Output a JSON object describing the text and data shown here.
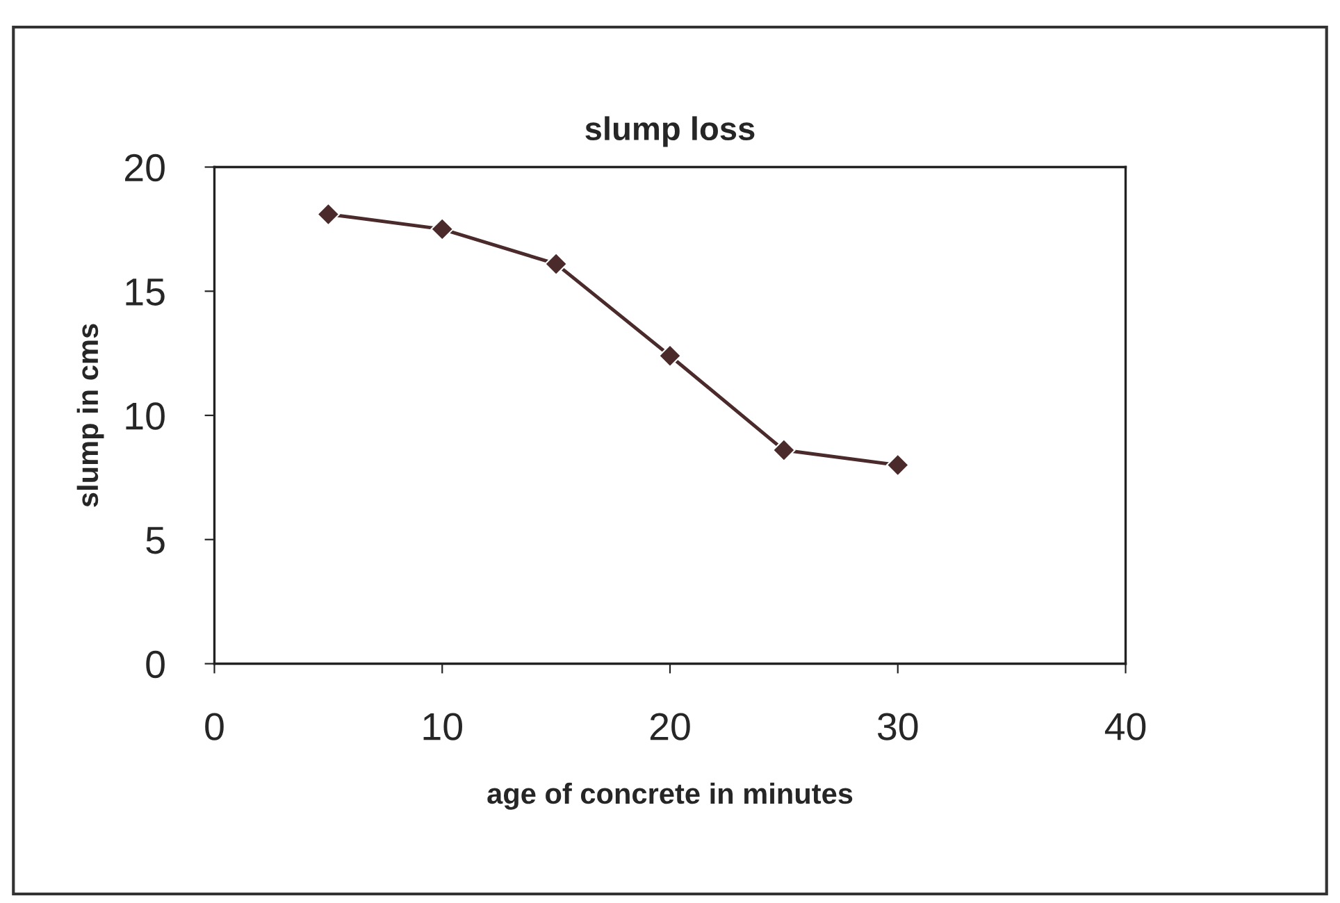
{
  "chart_data": {
    "type": "line",
    "title": "slump loss",
    "xlabel": "age of concrete in minutes",
    "ylabel": "slump in cms",
    "x": [
      5,
      10,
      15,
      20,
      25,
      30
    ],
    "series": [
      {
        "color": "#4a2a2a",
        "values": [
          18.1,
          17.5,
          16.1,
          12.4,
          8.6,
          8.0
        ]
      }
    ],
    "xlim": [
      0,
      40
    ],
    "xticks": [
      0,
      10,
      20,
      30,
      40
    ],
    "ylim": [
      0,
      20
    ],
    "yticks": [
      0,
      5,
      10,
      15,
      20
    ],
    "grid": false,
    "legend": false,
    "marker": "diamond",
    "line_style": "solid"
  }
}
